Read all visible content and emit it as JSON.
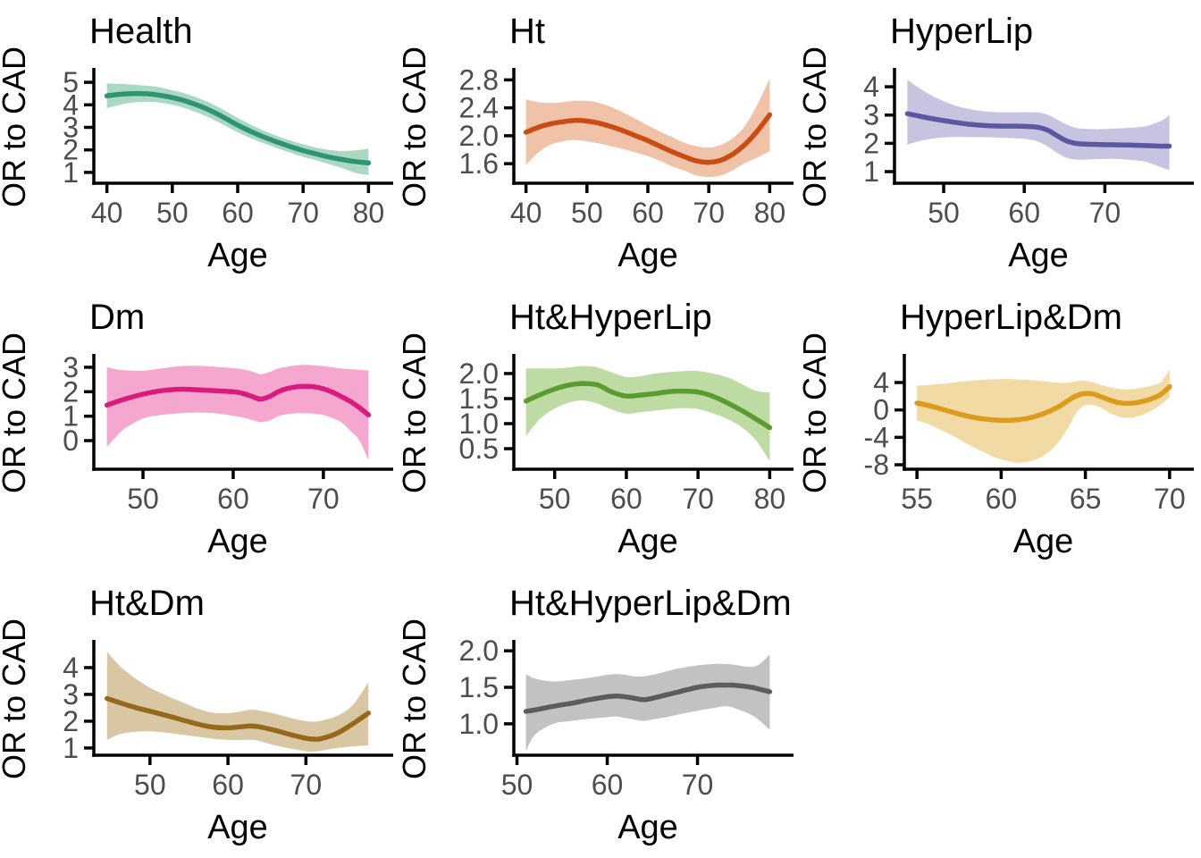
{
  "figure": {
    "x_label": "Age",
    "y_label": "OR to CAD",
    "axis_color": "#000000",
    "tick_label_color": "#4D4D4D",
    "background": "#FFFFFF"
  },
  "chart_data": [
    {
      "type": "area",
      "title": "Health",
      "line_color": "#2E9471",
      "band_color": "#A9D9C3",
      "xlabel": "Age",
      "ylabel": "OR to CAD",
      "x_ticks": [
        40,
        50,
        60,
        70,
        80
      ],
      "y_ticks": [
        "1",
        "2",
        "3",
        "4",
        "5"
      ],
      "x_domain": [
        38,
        82
      ],
      "y_domain": [
        0.52,
        5.48
      ],
      "x": [
        40,
        42,
        44,
        46,
        48,
        50,
        52,
        54,
        56,
        58,
        60,
        62,
        64,
        66,
        68,
        70,
        72,
        74,
        76,
        78,
        80
      ],
      "y": [
        4.4,
        4.47,
        4.5,
        4.49,
        4.43,
        4.32,
        4.17,
        3.97,
        3.72,
        3.42,
        3.1,
        2.82,
        2.57,
        2.35,
        2.15,
        1.97,
        1.82,
        1.68,
        1.57,
        1.48,
        1.42
      ],
      "hi": [
        4.95,
        4.93,
        4.9,
        4.85,
        4.78,
        4.65,
        4.5,
        4.3,
        4.05,
        3.75,
        3.42,
        3.12,
        2.85,
        2.62,
        2.42,
        2.25,
        2.1,
        2.0,
        1.95,
        1.98,
        2.05
      ],
      "lo": [
        3.85,
        4.0,
        4.1,
        4.13,
        4.1,
        4.0,
        3.85,
        3.64,
        3.39,
        3.09,
        2.78,
        2.52,
        2.29,
        2.08,
        1.88,
        1.69,
        1.54,
        1.36,
        1.19,
        0.98,
        0.88
      ]
    },
    {
      "type": "area",
      "title": "Ht",
      "line_color": "#C94D13",
      "band_color": "#F0C2A7",
      "xlabel": "Age",
      "ylabel": "OR to CAD",
      "x_ticks": [
        40,
        50,
        60,
        70,
        80
      ],
      "y_ticks": [
        "1.6",
        "2.0",
        "2.4",
        "2.8"
      ],
      "x_domain": [
        38,
        82
      ],
      "y_domain": [
        1.32,
        2.92
      ],
      "x": [
        40,
        42,
        44,
        46,
        48,
        50,
        52,
        54,
        56,
        58,
        60,
        62,
        64,
        66,
        68,
        70,
        72,
        74,
        76,
        78,
        80
      ],
      "y": [
        2.05,
        2.12,
        2.17,
        2.2,
        2.22,
        2.21,
        2.18,
        2.13,
        2.07,
        2.0,
        1.93,
        1.85,
        1.77,
        1.7,
        1.64,
        1.62,
        1.65,
        1.74,
        1.88,
        2.07,
        2.3
      ],
      "hi": [
        2.52,
        2.48,
        2.47,
        2.48,
        2.5,
        2.5,
        2.47,
        2.41,
        2.33,
        2.24,
        2.15,
        2.06,
        1.98,
        1.9,
        1.85,
        1.83,
        1.87,
        1.97,
        2.15,
        2.45,
        2.82
      ],
      "lo": [
        1.58,
        1.76,
        1.87,
        1.92,
        1.94,
        1.92,
        1.89,
        1.85,
        1.81,
        1.76,
        1.71,
        1.64,
        1.56,
        1.5,
        1.43,
        1.41,
        1.43,
        1.51,
        1.61,
        1.69,
        1.78
      ]
    },
    {
      "type": "area",
      "title": "HyperLip",
      "line_color": "#5B57A1",
      "band_color": "#C6C4E1",
      "xlabel": "Age",
      "ylabel": "OR to CAD",
      "x_ticks": [
        50,
        60,
        70
      ],
      "y_ticks": [
        "1",
        "2",
        "3",
        "4"
      ],
      "x_domain": [
        43.9,
        79.6
      ],
      "y_domain": [
        0.59,
        4.54
      ],
      "x": [
        45.5,
        47,
        49,
        51,
        53,
        55,
        57,
        59,
        61,
        62,
        63,
        64,
        65,
        66,
        67,
        69,
        71,
        73,
        75,
        77,
        78
      ],
      "y": [
        3.05,
        2.96,
        2.85,
        2.76,
        2.68,
        2.63,
        2.61,
        2.61,
        2.59,
        2.55,
        2.45,
        2.28,
        2.12,
        2.02,
        1.98,
        1.96,
        1.95,
        1.94,
        1.92,
        1.9,
        1.9
      ],
      "hi": [
        4.25,
        3.95,
        3.62,
        3.38,
        3.22,
        3.13,
        3.1,
        3.1,
        3.1,
        3.08,
        3.0,
        2.85,
        2.7,
        2.58,
        2.52,
        2.5,
        2.52,
        2.55,
        2.6,
        2.8,
        3.0
      ],
      "lo": [
        1.95,
        2.08,
        2.18,
        2.22,
        2.22,
        2.22,
        2.2,
        2.18,
        2.12,
        2.02,
        1.88,
        1.68,
        1.52,
        1.44,
        1.42,
        1.44,
        1.45,
        1.42,
        1.35,
        1.15,
        1.05
      ]
    },
    {
      "type": "area",
      "title": "Dm",
      "line_color": "#D81B7C",
      "band_color": "#F5A7CF",
      "xlabel": "Age",
      "ylabel": "OR to CAD",
      "x_ticks": [
        50,
        60,
        70
      ],
      "y_ticks": [
        "0",
        "1",
        "2",
        "3"
      ],
      "x_domain": [
        44.55,
        76.45
      ],
      "y_domain": [
        -1.17,
        3.4
      ],
      "x": [
        46,
        47,
        48,
        50,
        52,
        54,
        56,
        58,
        60,
        61,
        62,
        63,
        64,
        65,
        66,
        67,
        68,
        69,
        70,
        71,
        72,
        73,
        74,
        75
      ],
      "y": [
        1.45,
        1.58,
        1.7,
        1.9,
        2.04,
        2.1,
        2.08,
        2.04,
        2.0,
        1.94,
        1.82,
        1.7,
        1.8,
        2.0,
        2.13,
        2.2,
        2.22,
        2.2,
        2.12,
        1.98,
        1.8,
        1.6,
        1.35,
        1.05
      ],
      "hi": [
        3.0,
        2.92,
        2.88,
        2.86,
        2.95,
        3.04,
        3.06,
        3.02,
        2.96,
        2.92,
        2.84,
        2.72,
        2.8,
        2.95,
        3.02,
        3.08,
        3.1,
        3.08,
        3.05,
        3.0,
        2.95,
        2.92,
        2.9,
        2.87
      ],
      "lo": [
        -0.25,
        0.15,
        0.5,
        0.9,
        1.05,
        1.12,
        1.15,
        1.12,
        1.02,
        0.95,
        0.86,
        0.76,
        0.82,
        1.0,
        1.08,
        1.12,
        1.12,
        1.1,
        1.05,
        0.92,
        0.75,
        0.4,
        0.0,
        -0.8
      ]
    },
    {
      "type": "area",
      "title": "Ht&HyperLip",
      "line_color": "#5B9C30",
      "band_color": "#BEDBA4",
      "xlabel": "Age",
      "ylabel": "OR to CAD",
      "x_ticks": [
        50,
        60,
        70,
        80
      ],
      "y_ticks": [
        "0.5",
        "1.0",
        "1.5",
        "2.0"
      ],
      "x_domain": [
        44.3,
        81.7
      ],
      "y_domain": [
        0.09,
        2.32
      ],
      "x": [
        46,
        48,
        50,
        52,
        54,
        56,
        58,
        60,
        62,
        64,
        66,
        68,
        70,
        72,
        74,
        76,
        78,
        80
      ],
      "y": [
        1.45,
        1.58,
        1.69,
        1.77,
        1.8,
        1.77,
        1.63,
        1.55,
        1.57,
        1.6,
        1.64,
        1.65,
        1.63,
        1.55,
        1.42,
        1.27,
        1.1,
        0.92
      ],
      "hi": [
        2.1,
        2.1,
        2.1,
        2.12,
        2.15,
        2.12,
        2.02,
        1.93,
        1.95,
        2.0,
        2.03,
        2.05,
        2.05,
        2.0,
        1.93,
        1.8,
        1.66,
        1.62
      ],
      "lo": [
        0.75,
        1.1,
        1.3,
        1.42,
        1.46,
        1.4,
        1.28,
        1.2,
        1.23,
        1.26,
        1.29,
        1.31,
        1.29,
        1.21,
        1.1,
        0.94,
        0.68,
        0.25
      ]
    },
    {
      "type": "area",
      "title": "HyperLip&Dm",
      "line_color": "#DB9B1D",
      "band_color": "#F1DAA3",
      "xlabel": "Age",
      "ylabel": "OR to CAD",
      "x_ticks": [
        55,
        60,
        65,
        70
      ],
      "y_ticks": [
        "-8",
        "-4",
        "0",
        "4"
      ],
      "x_domain": [
        54.25,
        70.75
      ],
      "y_domain": [
        -8.65,
        7.65
      ],
      "x": [
        55,
        55.5,
        56,
        56.5,
        57,
        57.5,
        58,
        58.5,
        59,
        59.5,
        60,
        60.5,
        61,
        61.5,
        62,
        62.5,
        63,
        63.5,
        64,
        64.5,
        65,
        65.5,
        66,
        66.5,
        67,
        67.5,
        68,
        68.5,
        69,
        69.5,
        70
      ],
      "y": [
        1.0,
        0.75,
        0.45,
        0.1,
        -0.25,
        -0.6,
        -0.9,
        -1.15,
        -1.32,
        -1.44,
        -1.5,
        -1.5,
        -1.42,
        -1.25,
        -0.95,
        -0.55,
        -0.05,
        0.6,
        1.4,
        2.1,
        2.4,
        2.3,
        1.85,
        1.4,
        1.05,
        0.95,
        1.05,
        1.3,
        1.7,
        2.3,
        3.4
      ],
      "hi": [
        3.55,
        3.6,
        3.7,
        3.8,
        3.95,
        4.1,
        4.2,
        4.3,
        4.4,
        4.45,
        4.5,
        4.5,
        4.45,
        4.4,
        4.3,
        4.2,
        4.05,
        3.95,
        4.0,
        4.2,
        4.25,
        4.0,
        3.6,
        3.3,
        3.05,
        3.0,
        3.1,
        3.3,
        3.6,
        4.1,
        5.9
      ],
      "lo": [
        -1.55,
        -1.9,
        -2.4,
        -3.0,
        -3.6,
        -4.3,
        -5.0,
        -5.6,
        -6.2,
        -6.8,
        -7.2,
        -7.5,
        -7.7,
        -7.6,
        -7.3,
        -6.7,
        -5.8,
        -4.4,
        -2.5,
        -0.3,
        0.7,
        0.7,
        0.2,
        -0.5,
        -1.0,
        -1.15,
        -1.0,
        -0.6,
        0.0,
        0.8,
        1.9
      ]
    },
    {
      "type": "area",
      "title": "Ht&Dm",
      "line_color": "#94691B",
      "band_color": "#D9C7A4",
      "xlabel": "Age",
      "ylabel": "OR to CAD",
      "x_ticks": [
        50,
        60,
        70
      ],
      "y_ticks": [
        "1",
        "2",
        "3",
        "4"
      ],
      "x_domain": [
        42.8,
        79.7
      ],
      "y_domain": [
        0.73,
        4.9
      ],
      "x": [
        44.5,
        46,
        48,
        50,
        52,
        54,
        56,
        58,
        60,
        62,
        63,
        64,
        66,
        68,
        70,
        71,
        72,
        74,
        76,
        78
      ],
      "y": [
        2.85,
        2.7,
        2.52,
        2.37,
        2.22,
        2.06,
        1.9,
        1.78,
        1.75,
        1.8,
        1.82,
        1.79,
        1.66,
        1.5,
        1.36,
        1.33,
        1.35,
        1.55,
        1.9,
        2.3
      ],
      "hi": [
        4.6,
        4.1,
        3.62,
        3.25,
        2.97,
        2.72,
        2.48,
        2.32,
        2.3,
        2.38,
        2.43,
        2.4,
        2.28,
        2.12,
        2.0,
        1.98,
        2.02,
        2.2,
        2.6,
        3.45
      ],
      "lo": [
        1.3,
        1.5,
        1.6,
        1.62,
        1.57,
        1.5,
        1.42,
        1.35,
        1.3,
        1.3,
        1.3,
        1.26,
        1.1,
        0.98,
        0.88,
        0.87,
        0.9,
        1.0,
        1.06,
        1.1
      ]
    },
    {
      "type": "area",
      "title": "Ht&HyperLip&Dm",
      "line_color": "#5C5C5C",
      "band_color": "#C2C2C2",
      "xlabel": "Age",
      "ylabel": "OR to CAD",
      "x_ticks": [
        50,
        60,
        70
      ],
      "y_ticks": [
        "1.0",
        "1.5",
        "2.0"
      ],
      "x_domain": [
        49.65,
        79.35
      ],
      "y_domain": [
        0.57,
        2.1
      ],
      "x": [
        51,
        52,
        54,
        56,
        58,
        60,
        61,
        62,
        63,
        64,
        65,
        66,
        68,
        70,
        72,
        73,
        74,
        76,
        77,
        78
      ],
      "y": [
        1.17,
        1.19,
        1.24,
        1.28,
        1.33,
        1.37,
        1.38,
        1.37,
        1.35,
        1.33,
        1.35,
        1.38,
        1.44,
        1.5,
        1.53,
        1.53,
        1.53,
        1.5,
        1.47,
        1.44
      ],
      "hi": [
        1.68,
        1.62,
        1.58,
        1.6,
        1.63,
        1.67,
        1.68,
        1.67,
        1.65,
        1.65,
        1.67,
        1.7,
        1.76,
        1.8,
        1.82,
        1.82,
        1.81,
        1.78,
        1.83,
        1.95
      ],
      "lo": [
        0.63,
        0.85,
        1.0,
        1.04,
        1.07,
        1.09,
        1.1,
        1.08,
        1.06,
        1.04,
        1.06,
        1.08,
        1.13,
        1.18,
        1.22,
        1.24,
        1.22,
        1.12,
        1.03,
        0.92
      ]
    }
  ]
}
